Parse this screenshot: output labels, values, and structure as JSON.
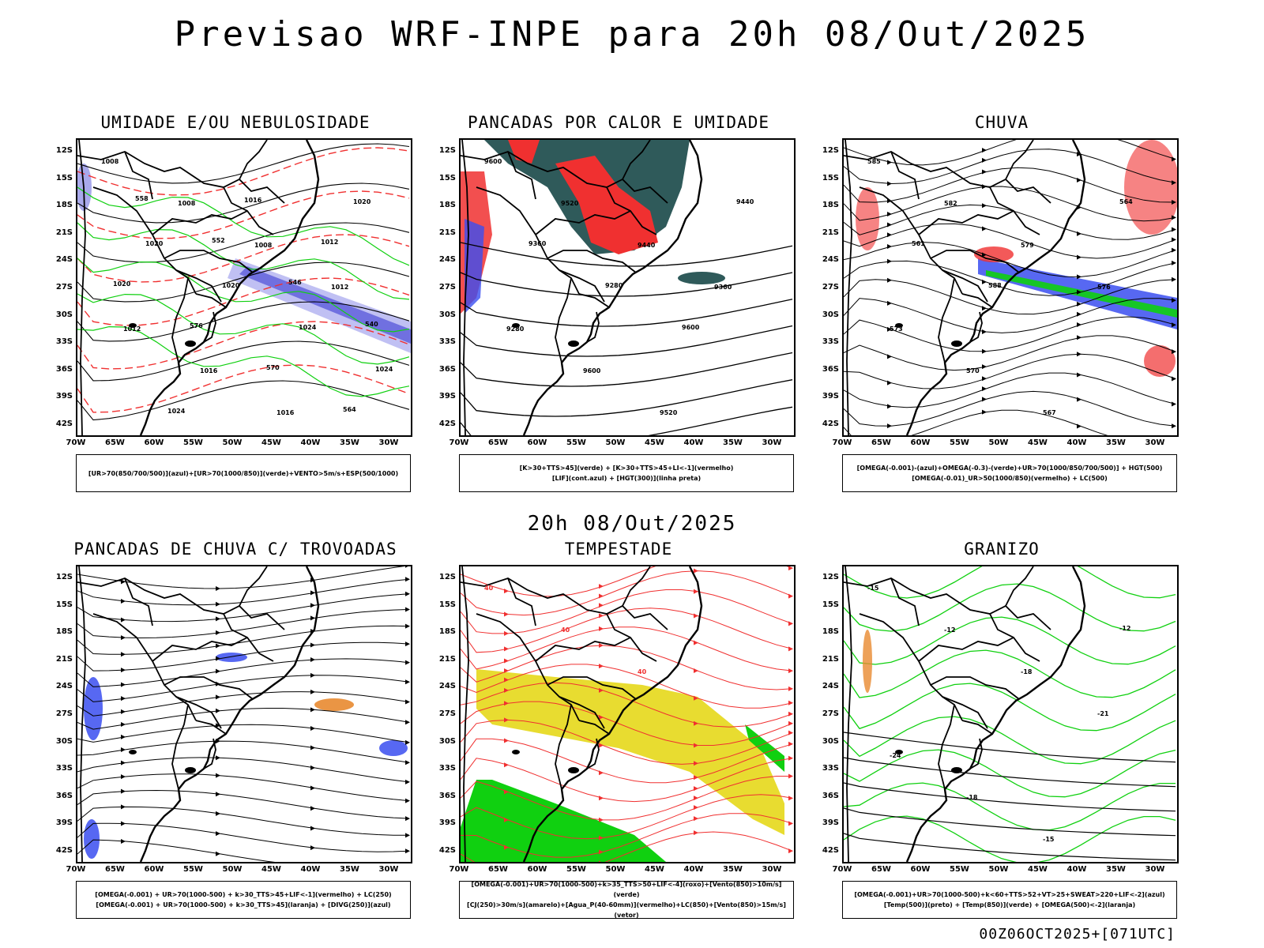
{
  "title": "Previsao WRF-INPE  para 20h 08/Out/2025",
  "subtitle": "20h 08/Out/2025",
  "footer": "00Z06OCT2025+[071UTC]",
  "lat_labels": [
    "12S",
    "15S",
    "18S",
    "21S",
    "24S",
    "27S",
    "30S",
    "33S",
    "36S",
    "39S",
    "42S"
  ],
  "lon_labels": [
    "70W",
    "65W",
    "60W",
    "55W",
    "50W",
    "45W",
    "40W",
    "35W",
    "30W"
  ],
  "panels": [
    {
      "title": "UMIDADE E/OU NEBULOSIDADE",
      "legend": [
        "[UR>70(850/700/500)](azul)+[UR>70(1000/850)](verde)+VENTO>5m/s+ESP(500/1000)"
      ],
      "contour_labels": [
        "1008",
        "1008",
        "1008",
        "1012",
        "1012",
        "1016",
        "1016",
        "1020",
        "1020",
        "1020",
        "1024",
        "1024",
        "1024",
        "1016",
        "1012",
        "1020",
        "576",
        "570",
        "564",
        "558",
        "552",
        "546",
        "540"
      ]
    },
    {
      "title": "PANCADAS POR CALOR E UMIDADE",
      "legend": [
        "[K>30+TTS>45](verde) + [K>30+TTS>45+LI<-1](vermelho)",
        "[LIF](cont.azul) + [HGT(300)](linha preta)"
      ],
      "contour_labels": [
        "9600",
        "9520",
        "9440",
        "9360",
        "9280",
        "9600",
        "9520",
        "9440",
        "9360",
        "9280",
        "9600"
      ]
    },
    {
      "title": "CHUVA",
      "legend": [
        "[OMEGA(-0.001)-(azul)+OMEGA(-0.3)-(verde)+UR>70(1000/850/700/500)] + HGT(500)",
        "[OMEGA(-0.01)_UR>50(1000/850)(vermelho) + LC(500)"
      ],
      "contour_labels": [
        "585",
        "582",
        "579",
        "576",
        "573",
        "570",
        "567",
        "564",
        "561",
        "588"
      ]
    },
    {
      "title": "PANCADAS DE CHUVA C/ TROVOADAS",
      "legend": [
        "[OMEGA(-0.001) + UR>70(1000-500) + k>30_TTS>45+LIF<-1](vermelho) + LC(250)",
        "[OMEGA(-0.001) + UR>70(1000-500) + k>30_TTS>45](laranja) + [DIVG(250)](azul)"
      ],
      "contour_labels": []
    },
    {
      "title": "TEMPESTADE",
      "legend": [
        "[OMEGA(-0.001)+UR>70(1000-500)+k>35_TTS>50+LIF<-4](roxo)+[Vento(850)>10m/s](verde)",
        "[CJ(250)>30m/s](amarelo)+[Agua_P(40-60mm)](vermelho)+LC(850)+[Vento(850)>15m/s](vetor)"
      ],
      "contour_labels": [
        "40",
        "40",
        "40"
      ]
    },
    {
      "title": "GRANIZO",
      "legend": [
        "[OMEGA(-0.001)+UR>70(1000-500)+k<60+TTS>52+VT>25+SWEAT>220+LIF<-2](azul)",
        "[Temp(500)](preto) + [Temp(850)](verde) + [OMEGA(500)<-2](laranja)"
      ],
      "contour_labels": [
        "-15",
        "-12",
        "-18",
        "-21",
        "-24",
        "-18",
        "-15",
        "-12"
      ]
    }
  ],
  "colors": {
    "blue": "#3a4ef0",
    "green": "#10d010",
    "red": "#f03030",
    "dark_teal": "#2f5a5a",
    "yellow": "#e8dc30",
    "orange": "#e88a30",
    "light_purple": "#b0b0f0",
    "purple": "#7070e0"
  }
}
